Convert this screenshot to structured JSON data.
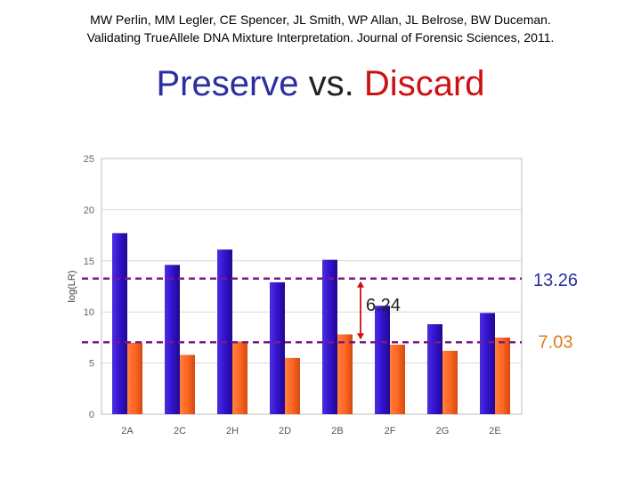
{
  "citation": {
    "line1": "MW Perlin, MM Legler, CE Spencer, JL Smith, WP Allan, JL Belrose, BW Duceman.",
    "line2": "Validating TrueAllele DNA Mixture Interpretation. Journal of Forensic Sciences, 2011."
  },
  "title": {
    "part1": "Preserve",
    "part2": "vs.",
    "part3": "Discard"
  },
  "chart_data": {
    "type": "bar",
    "categories": [
      "2A",
      "2C",
      "2H",
      "2D",
      "2B",
      "2F",
      "2G",
      "2E"
    ],
    "series": [
      {
        "values": [
          17.7,
          14.6,
          16.1,
          12.9,
          15.1,
          10.6,
          8.8,
          9.9
        ],
        "color": "#3311cc"
      },
      {
        "values": [
          7.0,
          5.8,
          7.1,
          5.5,
          7.8,
          6.8,
          6.2,
          7.5
        ],
        "color": "#ff6622"
      }
    ],
    "ylabel": "log(LR)",
    "ylim": [
      0,
      25
    ],
    "yticks": [
      0,
      5,
      10,
      15,
      20,
      25
    ],
    "grid": true,
    "reference_lines": [
      {
        "label": "13.26",
        "value": 13.26,
        "color": "#7a1a8a",
        "label_color": "#2b2ea0"
      },
      {
        "label": "7.03",
        "value": 7.03,
        "color": "#7a1a8a",
        "label_color": "#e07818"
      }
    ],
    "difference": {
      "label": "6.24",
      "from": 7.03,
      "to": 13.26,
      "color": "#cc1111",
      "category": "2F"
    }
  }
}
